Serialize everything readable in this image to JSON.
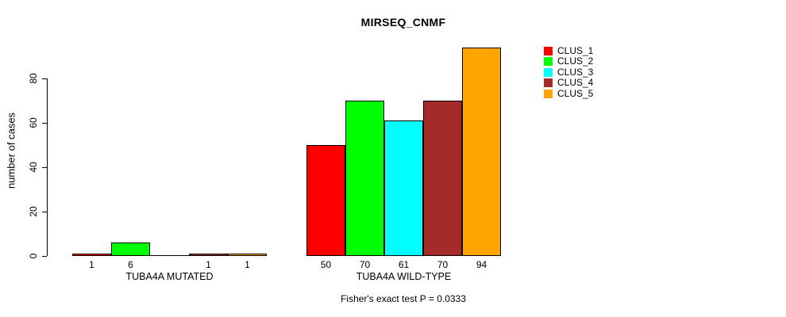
{
  "chart_data": {
    "type": "bar",
    "title": "MIRSEQ_CNMF",
    "ylabel": "number of cases",
    "xlabel": "",
    "ylim": [
      0,
      94
    ],
    "yticks": [
      0,
      20,
      40,
      60,
      80
    ],
    "categories": [
      "TUBA4A MUTATED",
      "TUBA4A WILD-TYPE"
    ],
    "series": [
      {
        "name": "CLUS_1",
        "color": "#ff0000",
        "values": [
          1,
          50
        ]
      },
      {
        "name": "CLUS_2",
        "color": "#00ff00",
        "values": [
          6,
          70
        ]
      },
      {
        "name": "CLUS_3",
        "color": "#00ffff",
        "values": [
          0,
          61
        ]
      },
      {
        "name": "CLUS_4",
        "color": "#a52a2a",
        "values": [
          1,
          70
        ]
      },
      {
        "name": "CLUS_5",
        "color": "#ffa500",
        "values": [
          1,
          94
        ]
      }
    ],
    "bar_value_labels": [
      [
        "1",
        "6",
        "",
        "1",
        "1"
      ],
      [
        "50",
        "70",
        "61",
        "70",
        "94"
      ]
    ],
    "annotation": "Fisher's exact test P = 0.0333",
    "legend_position": "right",
    "legend_entries": [
      "CLUS_1",
      "CLUS_2",
      "CLUS_3",
      "CLUS_4",
      "CLUS_5"
    ],
    "grid": false,
    "axis_color": "#000000",
    "text_color": "#000000",
    "background_color": "#ffffff"
  }
}
